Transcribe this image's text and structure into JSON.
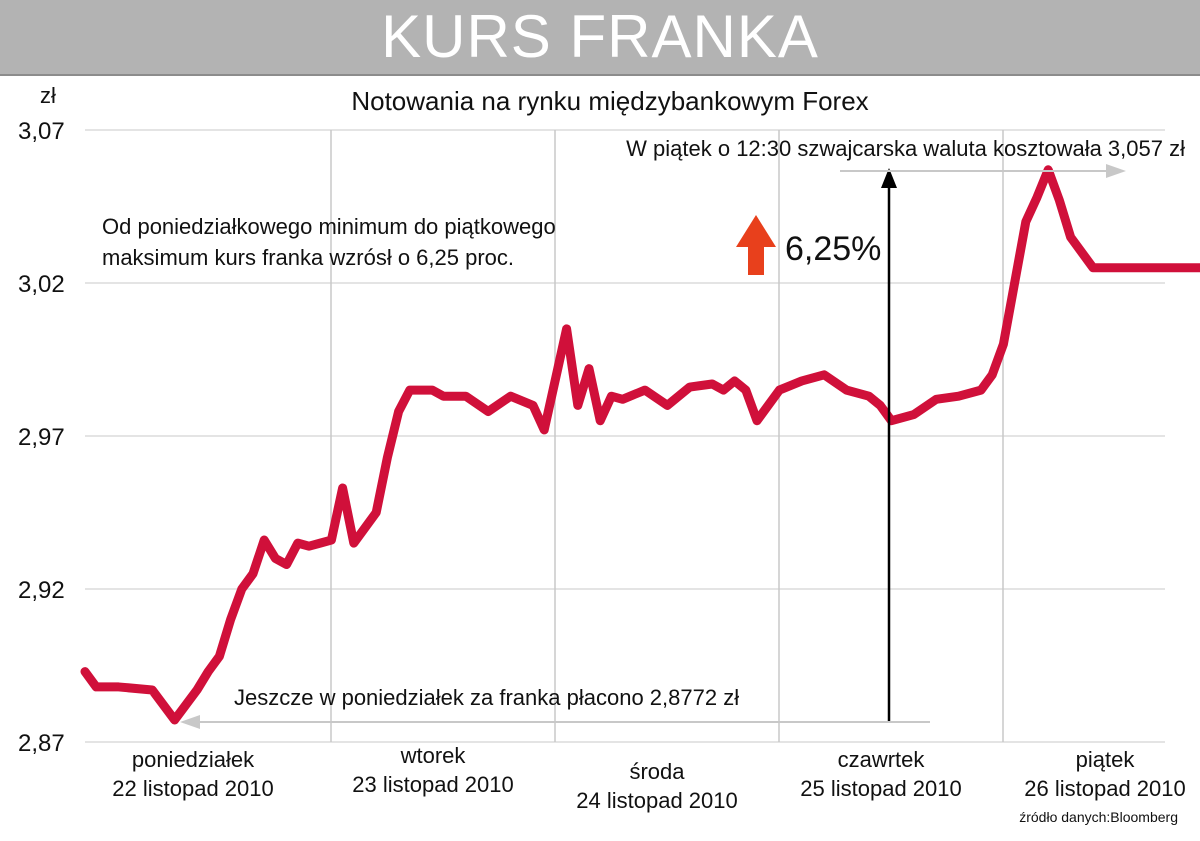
{
  "banner": {
    "title": "KURS FRANKA"
  },
  "source_note": "źródło danych:Bloomberg",
  "colors": {
    "series": "#d0103a",
    "grid": "#dcdcdc",
    "arrow_up": "#e8401c",
    "annotation_arrow": "#c8c8c8",
    "banner": "#b3b3b3"
  },
  "chart_data": {
    "type": "line",
    "title": "Notowania na rynku międzybankowym Forex",
    "ylabel": "zł",
    "ylim": [
      2.87,
      3.07
    ],
    "y_ticks": [
      "3,07",
      "3,02",
      "2,97",
      "2,92",
      "2,87"
    ],
    "y_tick_values": [
      3.07,
      3.02,
      2.97,
      2.92,
      2.87
    ],
    "xlim": [
      0,
      5
    ],
    "grid": {
      "horizontal": true,
      "vertical_day_separators": true
    },
    "days": [
      {
        "name": "poniedziałek",
        "date": "22 listopad 2010"
      },
      {
        "name": "wtorek",
        "date": "23 listopad 2010"
      },
      {
        "name": "środa",
        "date": "24 listopad 2010"
      },
      {
        "name": "czawrtek",
        "date": "25 listopad 2010"
      },
      {
        "name": "piątek",
        "date": "26 listopad 2010"
      }
    ],
    "series": [
      {
        "x": [
          0.0,
          0.05,
          0.15,
          0.3,
          0.4,
          0.5,
          0.55,
          0.6,
          0.65,
          0.7,
          0.75,
          0.8,
          0.85,
          0.9,
          0.95,
          1.0,
          1.05,
          1.1,
          1.15,
          1.2,
          1.3,
          1.35,
          1.4,
          1.45,
          1.55,
          1.6,
          1.7,
          1.8,
          1.9,
          2.0,
          2.05,
          2.15,
          2.2,
          2.25,
          2.3,
          2.35,
          2.4,
          2.5,
          2.6,
          2.7,
          2.8,
          2.85,
          2.9,
          2.95,
          3.0,
          3.1,
          3.2,
          3.3,
          3.4,
          3.5,
          3.55,
          3.6,
          3.7,
          3.8,
          3.9,
          4.0,
          4.05,
          4.1,
          4.15,
          4.2,
          4.25,
          4.3,
          4.35,
          4.4,
          4.5,
          4.55,
          4.6,
          4.65,
          4.7,
          4.75,
          4.8,
          4.85,
          4.9,
          4.95,
          5.0,
          5.05,
          5.08
        ],
        "y": [
          2.893,
          2.888,
          2.888,
          2.887,
          2.8772,
          2.887,
          2.893,
          2.898,
          2.91,
          2.92,
          2.925,
          2.936,
          2.93,
          2.928,
          2.935,
          2.934,
          2.935,
          2.936,
          2.953,
          2.935,
          2.945,
          2.963,
          2.978,
          2.985,
          2.985,
          2.983,
          2.983,
          2.978,
          2.983,
          2.98,
          2.972,
          3.005,
          2.98,
          2.992,
          2.975,
          2.983,
          2.982,
          2.985,
          2.98,
          2.986,
          2.987,
          2.985,
          2.988,
          2.985,
          2.975,
          2.985,
          2.988,
          2.99,
          2.985,
          2.983,
          2.98,
          2.975,
          2.977,
          2.982,
          2.983,
          2.985,
          2.99,
          3.0,
          3.02,
          3.04,
          3.048,
          3.057,
          3.047,
          3.035,
          3.025,
          3.025,
          3.025,
          3.025,
          3.025,
          3.025,
          3.025,
          3.025,
          3.025,
          3.025,
          3.025,
          3.025,
          3.022
        ]
      }
    ],
    "annotations": {
      "friday_price": "W piątek o 12:30 szwajcarska waluta kosztowała 3,057 zł",
      "range_note_line1": "Od poniedziałkowego minimum do piątkowego",
      "range_note_line2": "maksimum kurs franka wzrósł o 6,25 proc.",
      "change_pct": "6,25%",
      "monday_price": "Jeszcze w poniedziałek za franka płacono 2,8772 zł"
    }
  }
}
